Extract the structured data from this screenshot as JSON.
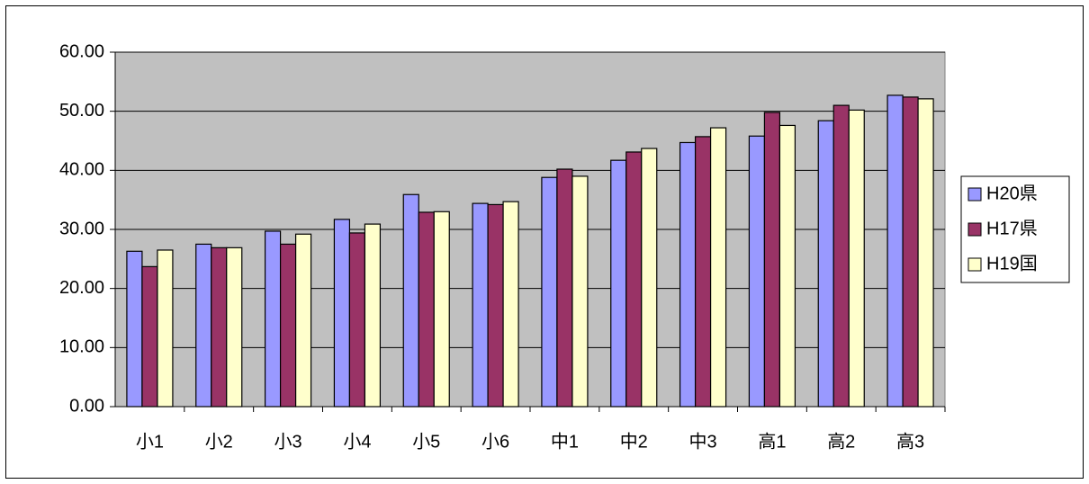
{
  "chart_data": {
    "type": "bar",
    "categories": [
      "小1",
      "小2",
      "小3",
      "小4",
      "小5",
      "小6",
      "中1",
      "中2",
      "中3",
      "高1",
      "高2",
      "高3"
    ],
    "series": [
      {
        "name": "H20県",
        "color": "#9999ff",
        "values": [
          26.3,
          27.5,
          29.7,
          31.7,
          35.9,
          34.4,
          38.8,
          41.7,
          44.7,
          45.8,
          48.4,
          52.7
        ]
      },
      {
        "name": "H17県",
        "color": "#993366",
        "values": [
          23.7,
          26.9,
          27.5,
          29.4,
          32.9,
          34.2,
          40.2,
          43.1,
          45.7,
          49.8,
          51.0,
          52.4
        ]
      },
      {
        "name": "H19国",
        "color": "#ffffcc",
        "values": [
          26.5,
          26.9,
          29.2,
          30.9,
          33.0,
          34.7,
          39.0,
          43.7,
          47.2,
          47.6,
          50.2,
          52.1
        ]
      }
    ],
    "ylim": [
      0,
      60
    ],
    "yticks": [
      {
        "value": 0,
        "label": "0.00"
      },
      {
        "value": 10,
        "label": "10.00"
      },
      {
        "value": 20,
        "label": "20.00"
      },
      {
        "value": 30,
        "label": "30.00"
      },
      {
        "value": 40,
        "label": "40.00"
      },
      {
        "value": 50,
        "label": "50.00"
      },
      {
        "value": 60,
        "label": "60.00"
      }
    ],
    "grid": true,
    "legend": "right",
    "plot_background": "#c0c0c0"
  }
}
